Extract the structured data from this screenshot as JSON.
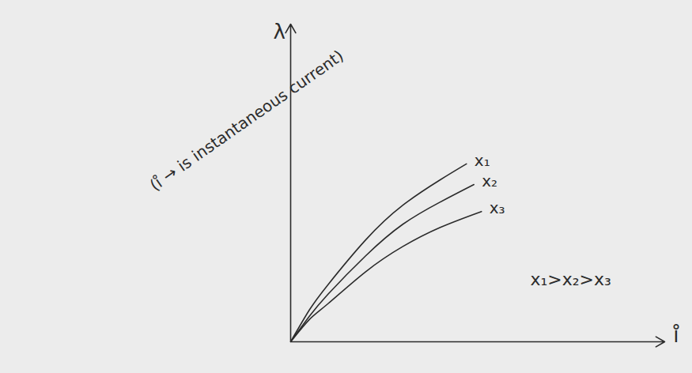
{
  "chart_data": {
    "type": "line",
    "x_label": "i̊",
    "y_label": "λ",
    "annotations": [
      "(i̊ → is instantaneous current)",
      "x₁>x₂>x₃"
    ],
    "xlim": [
      0,
      100
    ],
    "ylim": [
      0,
      100
    ],
    "xticks": [],
    "yticks": [],
    "tick_labels": false,
    "grid": false,
    "series": [
      {
        "name": "x₁",
        "color": "#2b2b2b",
        "x": [
          0,
          5,
          10,
          20,
          30,
          40,
          47
        ],
        "values": [
          0,
          10,
          18,
          32,
          43,
          51,
          56
        ]
      },
      {
        "name": "x₂",
        "color": "#2b2b2b",
        "x": [
          0,
          5,
          10,
          20,
          30,
          40,
          49
        ],
        "values": [
          0,
          8,
          15,
          27,
          37,
          44,
          49.5
        ]
      },
      {
        "name": "x₃",
        "color": "#2b2b2b",
        "x": [
          0,
          5,
          10,
          20,
          30,
          40,
          51
        ],
        "values": [
          0,
          7,
          12,
          22,
          30,
          36,
          41
        ]
      }
    ]
  }
}
